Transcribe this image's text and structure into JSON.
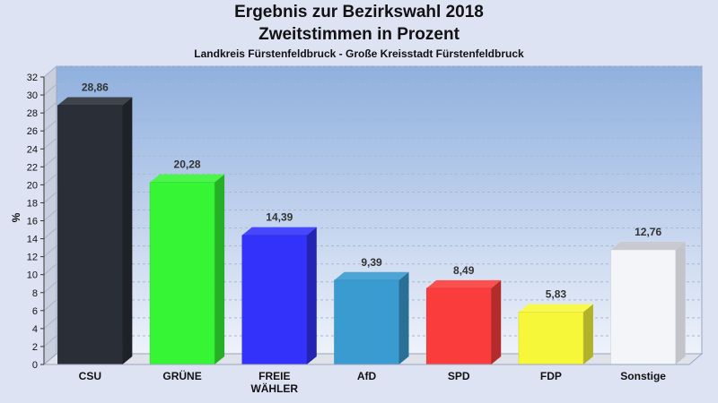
{
  "chart_data": {
    "type": "bar",
    "title": "Ergebnis zur Bezirkswahl 2018",
    "title_line2": "Zweitstimmen in Prozent",
    "subtitle": "Landkreis Fürstenfeldbruck - Große Kreisstadt Fürstenfeldbruck",
    "ylabel": "%",
    "xlabel": "",
    "ylim": [
      0,
      32
    ],
    "ytick_step": 2,
    "grid": true,
    "categories": [
      "CSU",
      "GRÜNE",
      "FREIE WÄHLER",
      "AfD",
      "SPD",
      "FDP",
      "Sonstige"
    ],
    "category_lines": [
      [
        "CSU"
      ],
      [
        "GRÜNE"
      ],
      [
        "FREIE",
        "WÄHLER"
      ],
      [
        "AfD"
      ],
      [
        "SPD"
      ],
      [
        "FDP"
      ],
      [
        "Sonstige"
      ]
    ],
    "values": [
      28.86,
      20.28,
      14.39,
      9.39,
      8.49,
      5.83,
      12.76
    ],
    "value_labels": [
      "28,86",
      "20,28",
      "14,39",
      "9,39",
      "8,49",
      "5,83",
      "12,76"
    ],
    "colors": [
      "#2a2e37",
      "#35f535",
      "#3232fa",
      "#3a9bd0",
      "#fa3c3c",
      "#f7f73a",
      "#f4f5f9"
    ]
  }
}
